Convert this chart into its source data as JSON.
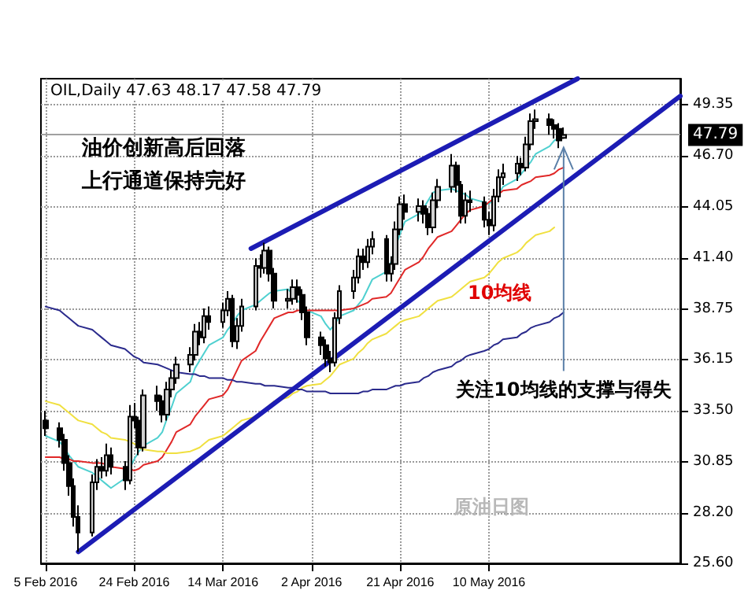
{
  "chart_data": {
    "type": "candlestick",
    "title": "OIL,Daily 47.63 48.17 47.58 47.79",
    "x": [
      "2016-02-05",
      "2016-02-08",
      "2016-02-09",
      "2016-02-10",
      "2016-02-11",
      "2016-02-12",
      "2016-02-15",
      "2016-02-16",
      "2016-02-17",
      "2016-02-18",
      "2016-02-19",
      "2016-02-22",
      "2016-02-23",
      "2016-02-24",
      "2016-02-25",
      "2016-02-26",
      "2016-02-29",
      "2016-03-01",
      "2016-03-02",
      "2016-03-03",
      "2016-03-04",
      "2016-03-07",
      "2016-03-08",
      "2016-03-09",
      "2016-03-10",
      "2016-03-11",
      "2016-03-14",
      "2016-03-15",
      "2016-03-16",
      "2016-03-17",
      "2016-03-18",
      "2016-03-21",
      "2016-03-22",
      "2016-03-23",
      "2016-03-24",
      "2016-03-25",
      "2016-03-28",
      "2016-03-29",
      "2016-03-30",
      "2016-03-31",
      "2016-04-01",
      "2016-04-04",
      "2016-04-05",
      "2016-04-06",
      "2016-04-07",
      "2016-04-08",
      "2016-04-11",
      "2016-04-12",
      "2016-04-13",
      "2016-04-14",
      "2016-04-15",
      "2016-04-18",
      "2016-04-19",
      "2016-04-20",
      "2016-04-21",
      "2016-04-22",
      "2016-04-25",
      "2016-04-26",
      "2016-04-27",
      "2016-04-28",
      "2016-04-29",
      "2016-05-02",
      "2016-05-03",
      "2016-05-04",
      "2016-05-05",
      "2016-05-06",
      "2016-05-09",
      "2016-05-10",
      "2016-05-11",
      "2016-05-12",
      "2016-05-13",
      "2016-05-16",
      "2016-05-17",
      "2016-05-18",
      "2016-05-19",
      "2016-05-20",
      "2016-05-23",
      "2016-05-24",
      "2016-05-25",
      "2016-05-26"
    ],
    "ohlc": [
      [
        33.0,
        33.5,
        32.2,
        32.6
      ],
      [
        32.6,
        32.9,
        31.6,
        32.0
      ],
      [
        32.0,
        32.3,
        30.4,
        30.8
      ],
      [
        30.8,
        31.2,
        29.1,
        29.6
      ],
      [
        29.6,
        30.0,
        27.5,
        28.0
      ],
      [
        28.0,
        28.6,
        26.2,
        27.2
      ],
      [
        27.2,
        30.2,
        27.0,
        29.8
      ],
      [
        29.8,
        31.0,
        29.4,
        30.6
      ],
      [
        30.6,
        31.1,
        30.0,
        30.4
      ],
      [
        30.4,
        31.8,
        30.1,
        31.2
      ],
      [
        31.2,
        31.6,
        30.2,
        30.6
      ],
      [
        30.6,
        30.9,
        29.4,
        29.9
      ],
      [
        29.9,
        33.8,
        29.7,
        33.2
      ],
      [
        33.2,
        33.9,
        32.6,
        33.0
      ],
      [
        33.0,
        33.2,
        31.2,
        31.6
      ],
      [
        31.6,
        34.6,
        31.4,
        34.3
      ],
      [
        34.3,
        34.8,
        33.5,
        34.0
      ],
      [
        34.0,
        34.3,
        32.9,
        33.3
      ],
      [
        33.3,
        35.0,
        33.0,
        34.6
      ],
      [
        34.6,
        35.6,
        34.2,
        35.2
      ],
      [
        35.2,
        36.3,
        34.9,
        35.9
      ],
      [
        35.9,
        36.8,
        35.5,
        36.4
      ],
      [
        36.4,
        38.0,
        36.1,
        37.6
      ],
      [
        37.6,
        38.1,
        36.9,
        37.3
      ],
      [
        37.3,
        38.8,
        37.0,
        38.4
      ],
      [
        38.4,
        38.9,
        37.7,
        38.1
      ],
      [
        38.1,
        39.1,
        37.8,
        38.7
      ],
      [
        38.7,
        39.7,
        38.4,
        39.3
      ],
      [
        39.3,
        39.5,
        36.8,
        37.1
      ],
      [
        37.1,
        38.3,
        36.7,
        37.9
      ],
      [
        37.9,
        39.3,
        37.6,
        38.9
      ],
      [
        38.9,
        41.4,
        38.7,
        41.0
      ],
      [
        41.0,
        41.6,
        40.4,
        40.9
      ],
      [
        40.9,
        42.2,
        40.6,
        41.8
      ],
      [
        41.8,
        42.0,
        40.2,
        40.6
      ],
      [
        40.6,
        40.9,
        38.8,
        39.2
      ],
      [
        39.2,
        39.8,
        38.8,
        39.3
      ],
      [
        39.3,
        40.3,
        39.0,
        39.9
      ],
      [
        39.9,
        40.3,
        39.1,
        39.5
      ],
      [
        39.5,
        39.8,
        38.2,
        38.6
      ],
      [
        38.6,
        38.9,
        36.9,
        37.3
      ],
      [
        37.3,
        37.6,
        36.4,
        36.9
      ],
      [
        36.9,
        37.2,
        35.8,
        36.2
      ],
      [
        36.2,
        36.6,
        35.5,
        36.0
      ],
      [
        36.0,
        38.6,
        35.8,
        38.3
      ],
      [
        38.3,
        40.0,
        38.0,
        39.7
      ],
      [
        39.7,
        40.8,
        39.3,
        40.4
      ],
      [
        40.4,
        41.9,
        40.1,
        41.5
      ],
      [
        41.5,
        41.9,
        40.8,
        41.2
      ],
      [
        41.2,
        42.4,
        40.9,
        42.0
      ],
      [
        42.0,
        42.8,
        41.6,
        42.4
      ],
      [
        42.4,
        42.6,
        40.2,
        40.6
      ],
      [
        40.6,
        41.5,
        40.2,
        41.1
      ],
      [
        41.1,
        43.3,
        40.8,
        42.9
      ],
      [
        42.9,
        44.6,
        42.6,
        44.2
      ],
      [
        44.2,
        44.7,
        43.4,
        43.8
      ],
      [
        43.8,
        44.5,
        43.3,
        44.1
      ],
      [
        44.1,
        44.4,
        43.2,
        43.7
      ],
      [
        43.7,
        44.0,
        42.6,
        43.0
      ],
      [
        43.0,
        44.8,
        42.7,
        44.4
      ],
      [
        44.4,
        45.5,
        44.0,
        45.1
      ],
      [
        45.1,
        46.8,
        44.8,
        46.2
      ],
      [
        46.2,
        46.4,
        44.8,
        45.2
      ],
      [
        45.2,
        45.4,
        43.2,
        43.6
      ],
      [
        43.6,
        44.8,
        43.2,
        44.4
      ],
      [
        44.4,
        44.9,
        43.8,
        44.3
      ],
      [
        44.3,
        44.6,
        43.0,
        43.4
      ],
      [
        43.4,
        43.8,
        42.6,
        43.1
      ],
      [
        43.1,
        45.0,
        42.8,
        44.6
      ],
      [
        44.6,
        46.0,
        44.3,
        45.6
      ],
      [
        45.6,
        46.3,
        45.2,
        45.8
      ],
      [
        45.8,
        46.7,
        45.4,
        46.3
      ],
      [
        46.3,
        46.6,
        45.7,
        46.1
      ],
      [
        46.1,
        47.7,
        45.9,
        47.3
      ],
      [
        47.3,
        48.9,
        47.0,
        48.5
      ],
      [
        48.5,
        49.1,
        48.1,
        48.6
      ],
      [
        48.6,
        48.9,
        47.8,
        48.3
      ],
      [
        48.3,
        48.6,
        47.6,
        48.1
      ],
      [
        48.1,
        48.4,
        47.1,
        47.5
      ],
      [
        47.63,
        48.17,
        47.58,
        47.79
      ]
    ],
    "series": [
      {
        "type": "line",
        "color": "#4fd0d0",
        "values": [
          32.2,
          31.9,
          31.6,
          31.2,
          30.9,
          30.6,
          30.3,
          30.1,
          29.9,
          29.7,
          29.5,
          30.0,
          30.5,
          31.0,
          31.4,
          31.7,
          32.1,
          32.4,
          33.1,
          33.7,
          34.4,
          35.0,
          35.7,
          36.1,
          36.5,
          36.9,
          37.3,
          37.7,
          38.0,
          38.4,
          38.7,
          39.0,
          39.2,
          39.4,
          39.6,
          39.7,
          39.8,
          39.5,
          39.2,
          39.0,
          38.7,
          38.4,
          38.0,
          37.7,
          38.0,
          38.4,
          38.7,
          39.0,
          39.3,
          39.8,
          40.3,
          40.7,
          41.2,
          42.0,
          42.7,
          43.3,
          43.7,
          44.0,
          44.4,
          44.8,
          44.9,
          45.0,
          44.9,
          44.8,
          44.7,
          44.5,
          44.3,
          44.2,
          44.5,
          44.7,
          45.1,
          45.5,
          45.8,
          46.1,
          46.4,
          46.8,
          47.2,
          47.5,
          47.6,
          null
        ]
      },
      {
        "type": "line",
        "color": "#e02828",
        "values": [
          31.1,
          31.1,
          31.0,
          31.0,
          30.9,
          30.9,
          30.8,
          30.8,
          30.8,
          30.7,
          30.6,
          30.5,
          30.5,
          30.4,
          30.5,
          30.7,
          30.9,
          31.1,
          31.5,
          31.9,
          32.4,
          32.8,
          33.2,
          33.5,
          33.8,
          34.1,
          34.3,
          34.6,
          35.1,
          35.6,
          36.1,
          36.6,
          37.1,
          37.5,
          37.9,
          38.3,
          38.6,
          38.6,
          38.7,
          38.7,
          38.7,
          38.7,
          38.7,
          38.7,
          38.7,
          38.7,
          38.8,
          38.9,
          39.0,
          39.1,
          39.3,
          39.4,
          39.6,
          40.0,
          40.4,
          40.8,
          41.2,
          41.5,
          41.9,
          42.2,
          42.5,
          42.8,
          43.1,
          43.4,
          43.7,
          43.9,
          44.1,
          44.3,
          44.5,
          44.7,
          44.9,
          45.0,
          45.2,
          45.3,
          45.4,
          45.6,
          45.7,
          45.8,
          46.0,
          46.1
        ]
      },
      {
        "type": "line",
        "color": "#f0e040",
        "values": [
          34.0,
          33.8,
          33.6,
          33.4,
          33.2,
          33.0,
          32.8,
          32.6,
          32.4,
          32.3,
          32.1,
          32.0,
          31.9,
          31.8,
          31.6,
          31.5,
          31.4,
          31.4,
          31.3,
          31.3,
          31.3,
          31.4,
          31.5,
          31.6,
          31.8,
          32.0,
          32.2,
          32.4,
          32.6,
          32.8,
          33.0,
          33.2,
          33.4,
          33.6,
          33.8,
          34.0,
          34.2,
          34.4,
          34.5,
          34.7,
          34.8,
          34.9,
          35.1,
          35.3,
          35.6,
          35.9,
          36.2,
          36.5,
          36.7,
          37.0,
          37.2,
          37.5,
          37.7,
          37.9,
          38.1,
          38.2,
          38.4,
          38.6,
          38.8,
          39.0,
          39.2,
          39.4,
          39.6,
          39.8,
          40.0,
          40.2,
          40.4,
          40.6,
          40.9,
          41.2,
          41.4,
          41.7,
          41.9,
          42.2,
          42.4,
          42.6,
          42.8,
          43.0,
          null,
          null
        ]
      },
      {
        "type": "line",
        "color": "#2a2a8c",
        "values": [
          38.9,
          38.7,
          38.5,
          38.3,
          38.1,
          37.9,
          37.7,
          37.5,
          37.3,
          37.1,
          36.9,
          36.7,
          36.5,
          36.3,
          36.2,
          36.0,
          35.9,
          35.8,
          35.7,
          35.6,
          35.5,
          35.4,
          35.4,
          35.3,
          35.3,
          35.2,
          35.2,
          35.1,
          35.1,
          35.0,
          35.0,
          34.9,
          34.9,
          34.8,
          34.8,
          34.8,
          34.7,
          34.7,
          34.6,
          34.6,
          34.5,
          34.5,
          34.5,
          34.4,
          34.4,
          34.4,
          34.4,
          34.4,
          34.5,
          34.5,
          34.6,
          34.6,
          34.7,
          34.8,
          34.8,
          34.9,
          35.0,
          35.2,
          35.3,
          35.5,
          35.6,
          35.8,
          36.0,
          36.1,
          36.3,
          36.4,
          36.6,
          36.7,
          36.9,
          37.0,
          37.2,
          37.3,
          37.5,
          37.6,
          37.8,
          37.9,
          38.1,
          38.3,
          38.4,
          38.6
        ]
      },
      {
        "type": "line",
        "color": "#1c1cb4",
        "x": [
          "2016-03-20",
          "2016-05-29"
        ],
        "values": [
          41.9,
          50.7
        ]
      },
      {
        "type": "line",
        "color": "#1c1cb4",
        "x": [
          "2016-02-12",
          "2016-06-20"
        ],
        "values": [
          26.2,
          49.8
        ]
      }
    ],
    "xlim": [
      "2016-02-04",
      "2016-06-20"
    ],
    "xticks": [
      {
        "value": "2016-02-05",
        "label": "5 Feb 2016"
      },
      {
        "value": "2016-02-24",
        "label": "24 Feb 2016"
      },
      {
        "value": "2016-03-14",
        "label": "14 Mar 2016"
      },
      {
        "value": "2016-04-02",
        "label": "2 Apr 2016"
      },
      {
        "value": "2016-04-21",
        "label": "21 Apr 2016"
      },
      {
        "value": "2016-05-10",
        "label": "10 May 2016"
      }
    ],
    "ylim": [
      25.6,
      50.7
    ],
    "yticks": [
      {
        "value": 25.6,
        "label": "25.60"
      },
      {
        "value": 28.2,
        "label": "28.20"
      },
      {
        "value": 30.85,
        "label": "30.85"
      },
      {
        "value": 33.5,
        "label": "33.50"
      },
      {
        "value": 36.15,
        "label": "36.15"
      },
      {
        "value": 38.75,
        "label": "38.75"
      },
      {
        "value": 41.4,
        "label": "41.40"
      },
      {
        "value": 44.05,
        "label": "44.05"
      },
      {
        "value": 46.7,
        "label": "46.70"
      },
      {
        "value": 49.35,
        "label": "49.35"
      }
    ],
    "ref_lines": [
      {
        "axis": "y",
        "value": 47.79,
        "label": "47.79",
        "color": "#a0a0a0"
      }
    ],
    "grid": true,
    "marker": "none",
    "annotations": [
      "油价创新高后回落",
      "上行通道保持完好",
      "10均线",
      {
        "text": "关注10均线的支撑与得失",
        "x": "2016-05-26",
        "y": 47.3
      },
      "原油日图"
    ]
  }
}
